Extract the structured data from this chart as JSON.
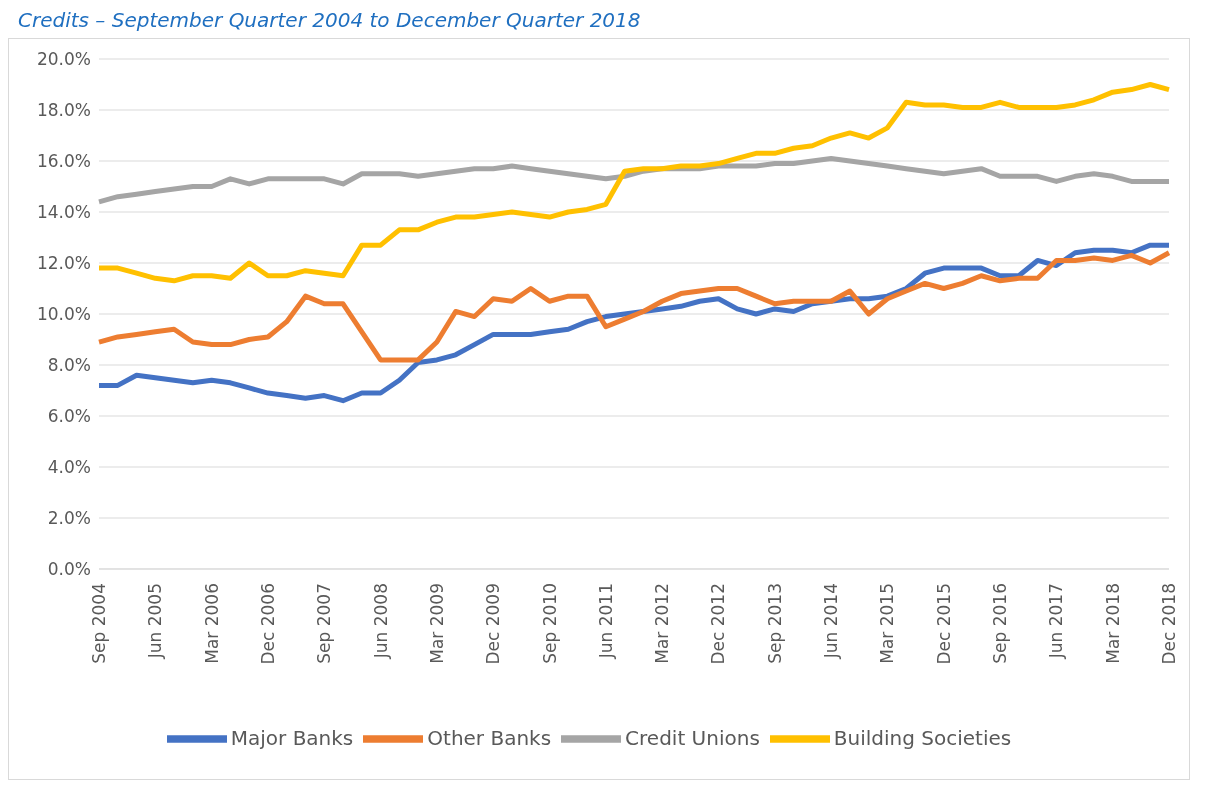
{
  "chart_data": {
    "type": "line",
    "title": "Credits – September Quarter 2004 to December Quarter 2018",
    "categories": [
      "Sep 2004",
      null,
      null,
      "Jun 2005",
      null,
      null,
      "Mar 2006",
      null,
      null,
      "Dec 2006",
      null,
      null,
      "Sep 2007",
      null,
      null,
      "Jun 2008",
      null,
      null,
      "Mar 2009",
      null,
      null,
      "Dec 2009",
      null,
      null,
      "Sep 2010",
      null,
      null,
      "Jun 2011",
      null,
      null,
      "Mar 2012",
      null,
      null,
      "Dec 2012",
      null,
      null,
      "Sep 2013",
      null,
      null,
      "Jun 2014",
      null,
      null,
      "Mar 2015",
      null,
      null,
      "Dec 2015",
      null,
      null,
      "Sep 2016",
      null,
      null,
      "Jun 2017",
      null,
      null,
      "Mar 2018",
      null,
      null,
      "Dec 2018"
    ],
    "series": [
      {
        "name": "Major Banks",
        "color": "#4472c4",
        "values": [
          7.2,
          7.2,
          7.6,
          7.5,
          7.4,
          7.3,
          7.4,
          7.3,
          7.1,
          6.9,
          6.8,
          6.7,
          6.8,
          6.6,
          6.9,
          6.9,
          7.4,
          8.1,
          8.2,
          8.4,
          8.8,
          9.2,
          9.2,
          9.2,
          9.3,
          9.4,
          9.7,
          9.9,
          10.0,
          10.1,
          10.2,
          10.3,
          10.5,
          10.6,
          10.2,
          10.0,
          10.2,
          10.1,
          10.4,
          10.5,
          10.6,
          10.6,
          10.7,
          11.0,
          11.6,
          11.8,
          11.8,
          11.8,
          11.5,
          11.5,
          12.1,
          11.9,
          12.4,
          12.5,
          12.5,
          12.4,
          12.7,
          12.7
        ]
      },
      {
        "name": "Other Banks",
        "color": "#ed7d31",
        "values": [
          8.9,
          9.1,
          9.2,
          9.3,
          9.4,
          8.9,
          8.8,
          8.8,
          9.0,
          9.1,
          9.7,
          10.7,
          10.4,
          10.4,
          9.3,
          8.2,
          8.2,
          8.2,
          8.9,
          10.1,
          9.9,
          10.6,
          10.5,
          11.0,
          10.5,
          10.7,
          10.7,
          9.5,
          9.8,
          10.1,
          10.5,
          10.8,
          10.9,
          11.0,
          11.0,
          10.7,
          10.4,
          10.5,
          10.5,
          10.5,
          10.9,
          10.0,
          10.6,
          10.9,
          11.2,
          11.0,
          11.2,
          11.5,
          11.3,
          11.4,
          11.4,
          12.1,
          12.1,
          12.2,
          12.1,
          12.3,
          12.0,
          12.4
        ]
      },
      {
        "name": "Credit Unions",
        "color": "#a5a5a5",
        "values": [
          14.4,
          14.6,
          14.7,
          14.8,
          14.9,
          15.0,
          15.0,
          15.3,
          15.1,
          15.3,
          15.3,
          15.3,
          15.3,
          15.1,
          15.5,
          15.5,
          15.5,
          15.4,
          15.5,
          15.6,
          15.7,
          15.7,
          15.8,
          15.7,
          15.6,
          15.5,
          15.4,
          15.3,
          15.4,
          15.6,
          15.7,
          15.7,
          15.7,
          15.8,
          15.8,
          15.8,
          15.9,
          15.9,
          16.0,
          16.1,
          16.0,
          15.9,
          15.8,
          15.7,
          15.6,
          15.5,
          15.6,
          15.7,
          15.4,
          15.4,
          15.4,
          15.2,
          15.4,
          15.5,
          15.4,
          15.2,
          15.2,
          15.2
        ]
      },
      {
        "name": "Building Societies",
        "color": "#ffc000",
        "values": [
          11.8,
          11.8,
          11.6,
          11.4,
          11.3,
          11.5,
          11.5,
          11.4,
          12.0,
          11.5,
          11.5,
          11.7,
          11.6,
          11.5,
          12.7,
          12.7,
          13.3,
          13.3,
          13.6,
          13.8,
          13.8,
          13.9,
          14.0,
          13.9,
          13.8,
          14.0,
          14.1,
          14.3,
          15.6,
          15.7,
          15.7,
          15.8,
          15.8,
          15.9,
          16.1,
          16.3,
          16.3,
          16.5,
          16.6,
          16.9,
          17.1,
          16.9,
          17.3,
          18.3,
          18.2,
          18.2,
          18.1,
          18.1,
          18.3,
          18.1,
          18.1,
          18.1,
          18.2,
          18.4,
          18.7,
          18.8,
          19.0,
          18.8
        ]
      }
    ],
    "ylim": [
      0,
      20
    ],
    "yticks": [
      {
        "value": 0,
        "label": "0.0%"
      },
      {
        "value": 2,
        "label": "2.0%"
      },
      {
        "value": 4,
        "label": "4.0%"
      },
      {
        "value": 6,
        "label": "6.0%"
      },
      {
        "value": 8,
        "label": "8.0%"
      },
      {
        "value": 10,
        "label": "10.0%"
      },
      {
        "value": 12,
        "label": "12.0%"
      },
      {
        "value": 14,
        "label": "14.0%"
      },
      {
        "value": 16,
        "label": "16.0%"
      },
      {
        "value": 18,
        "label": "18.0%"
      },
      {
        "value": 20,
        "label": "20.0%"
      }
    ],
    "grid": "y",
    "legend": "bottom",
    "marker": "none",
    "line_style": "solid"
  }
}
